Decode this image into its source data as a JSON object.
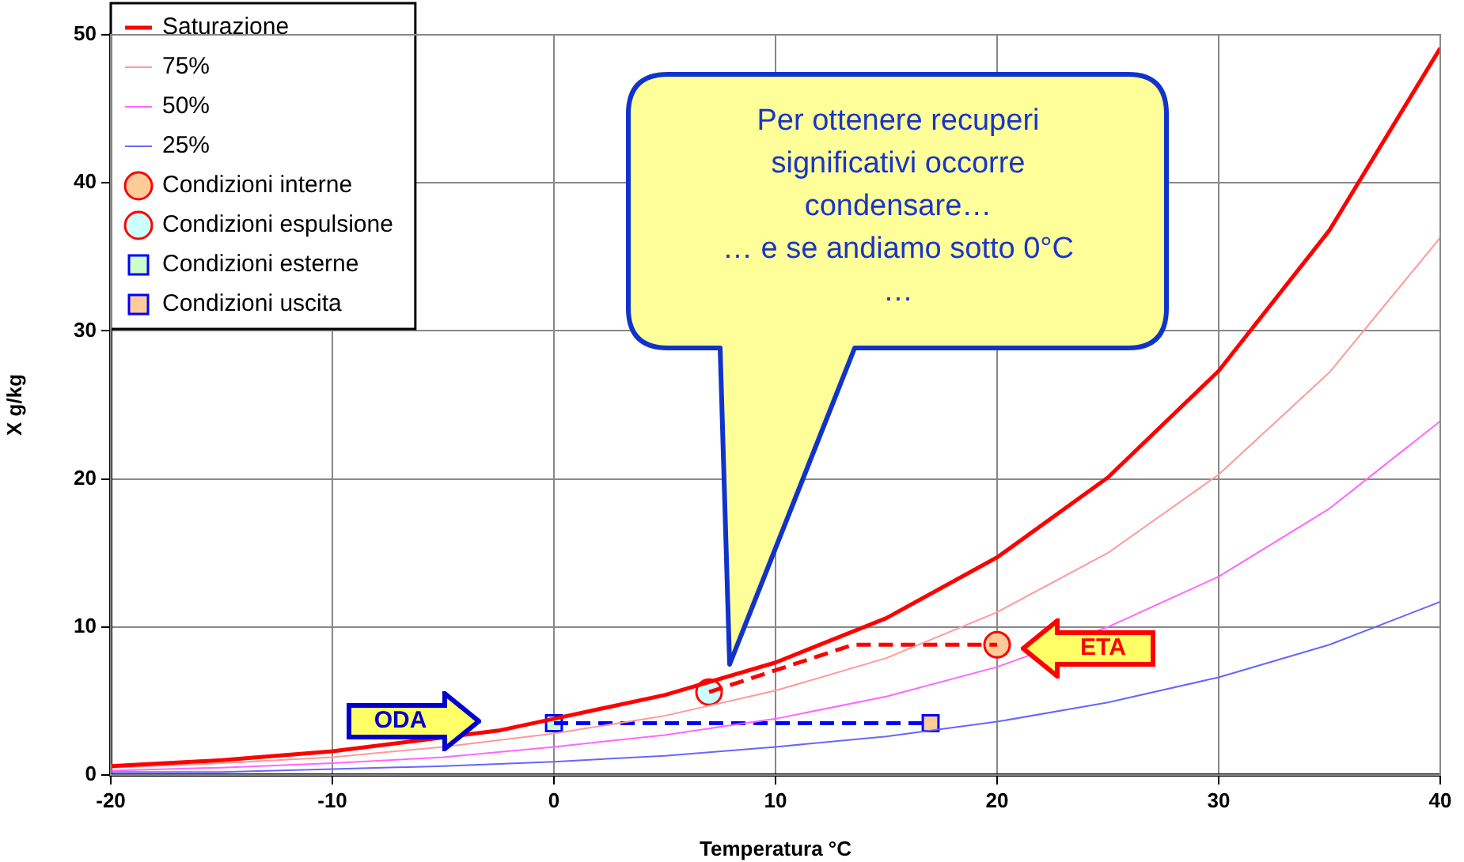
{
  "chart_data": {
    "type": "line",
    "xlabel": "Temperatura °C",
    "ylabel": "X g/kg",
    "xlim": [
      -20,
      40
    ],
    "ylim": [
      0,
      50
    ],
    "xticks": [
      -20,
      -10,
      0,
      10,
      20,
      30,
      40
    ],
    "yticks": [
      0,
      10,
      20,
      30,
      40,
      50
    ],
    "grid": true,
    "legend": "top left",
    "x": [
      -20,
      -15,
      -10,
      -5,
      0,
      5,
      10,
      15,
      20,
      25,
      30,
      35,
      40
    ],
    "series": [
      {
        "name": "Saturazione",
        "color": "#ff0000",
        "x": [
          -20,
          -15,
          -10,
          -2.5,
          0,
          5,
          10,
          15,
          20,
          25,
          30,
          35,
          40
        ],
        "values": [
          0.6,
          1.0,
          1.6,
          3.0,
          3.8,
          5.4,
          7.6,
          10.6,
          14.7,
          20.1,
          27.3,
          36.8,
          49.1
        ]
      },
      {
        "name": "75%",
        "color": "#ff9999",
        "values": [
          0.5,
          0.8,
          1.2,
          1.9,
          2.8,
          4.0,
          5.7,
          7.9,
          11.0,
          15.0,
          20.3,
          27.2,
          36.3
        ]
      },
      {
        "name": "50%",
        "color": "#ff66ff",
        "values": [
          0.3,
          0.5,
          0.8,
          1.2,
          1.9,
          2.7,
          3.8,
          5.3,
          7.3,
          10.0,
          13.4,
          18.0,
          23.9
        ]
      },
      {
        "name": "25%",
        "color": "#6666ff",
        "values": [
          0.2,
          0.2,
          0.4,
          0.6,
          0.9,
          1.3,
          1.9,
          2.6,
          3.6,
          4.9,
          6.6,
          8.8,
          11.7
        ]
      },
      {
        "color": "#ff0000",
        "x": [
          7,
          13.5,
          20
        ],
        "values": [
          5.6,
          8.8,
          8.8
        ],
        "line_style": "dashed"
      },
      {
        "color": "#0000ff",
        "x": [
          0,
          17
        ],
        "values": [
          3.5,
          3.5
        ],
        "line_style": "dashed"
      },
      {
        "name": "Condizioni interne",
        "type": "scatter",
        "marker": "circle",
        "color": "#ffcc99",
        "x": [
          20
        ],
        "values": [
          8.8
        ]
      },
      {
        "name": "Condizioni espulsione",
        "type": "scatter",
        "marker": "circle",
        "color": "#ccffff",
        "x": [
          7
        ],
        "values": [
          5.6
        ]
      },
      {
        "name": "Condizioni esterne",
        "type": "scatter",
        "marker": "square",
        "color": "#ccffcc",
        "x": [
          0
        ],
        "values": [
          3.5
        ]
      },
      {
        "name": "Condizioni uscita",
        "type": "scatter",
        "marker": "square",
        "color": "#ffcc99",
        "x": [
          17
        ],
        "values": [
          3.5
        ]
      }
    ],
    "annotations": [
      "Per ottenere recuperi\nsignificativi occorre\ncondensare…\n… e se andiamo sotto 0°C\n…",
      "ODA",
      "ETA"
    ]
  }
}
